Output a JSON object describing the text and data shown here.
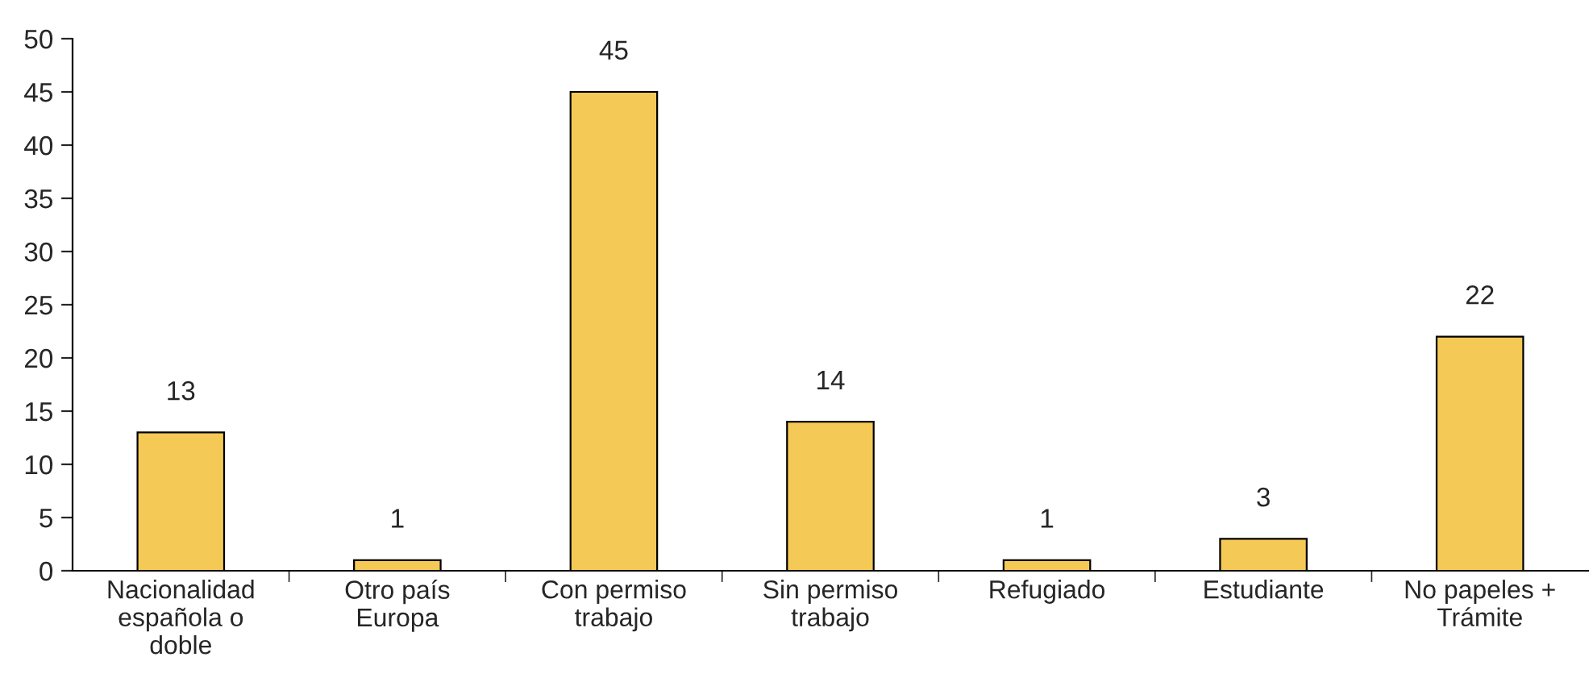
{
  "chart_data": {
    "type": "bar",
    "categories": [
      "Nacionalidad\nespañola o\ndoble",
      "Otro país\nEuropa",
      "Con permiso\ntrabajo",
      "Sin permiso\ntrabajo",
      "Refugiado",
      "Estudiante",
      "No papeles +\nTrámite"
    ],
    "values": [
      13,
      1,
      45,
      14,
      1,
      3,
      22
    ],
    "color": "#f5c955",
    "data_labels": true,
    "ylim": [
      0,
      50
    ],
    "yticks": [
      0,
      5,
      10,
      15,
      20,
      25,
      30,
      35,
      40,
      45,
      50
    ],
    "grid": false
  }
}
